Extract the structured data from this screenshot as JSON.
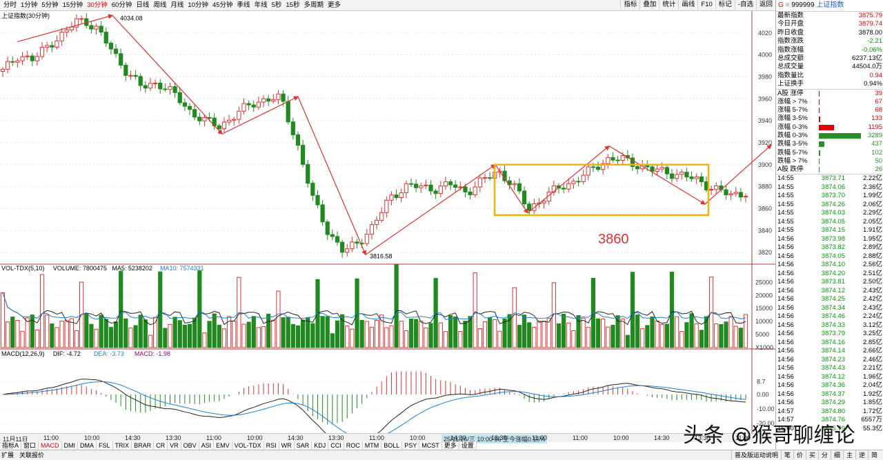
{
  "periods": [
    "分时",
    "1分钟",
    "5分钟",
    "15分钟",
    "30分钟",
    "60分钟",
    "日线",
    "周线",
    "月线",
    "10分钟",
    "45分钟",
    "季线",
    "年线",
    "5秒",
    "15秒",
    "多周期",
    "更多"
  ],
  "active_period": "30分钟",
  "tools": [
    "指标",
    "叠加",
    "统计",
    "画线",
    "F10",
    "标记",
    "-自选",
    "返回"
  ],
  "chart_title": "上证指数(30分钟)",
  "price_axis": [
    "4020",
    "4000",
    "3980",
    "3960",
    "3940",
    "3920",
    "3900",
    "3880",
    "3860",
    "3840",
    "3820"
  ],
  "high_label": "4034.08",
  "low_label": "3816.58",
  "annotation": "3860",
  "vol_header": {
    "name": "VOL-TDX(5,10)",
    "volume": "VOLUME: 7800475",
    "ma5": "MA5: 5238202",
    "ma10": "MA10: 7574331"
  },
  "vol_axis": [
    "25000",
    "20000",
    "15000",
    "10000",
    "5000",
    "X1000"
  ],
  "macd_header": {
    "name": "MACD(12,26,9)",
    "dif": "DIF: -4.72",
    "dea": "DEA: -3.73",
    "macd": "MACD: -1.98"
  },
  "macd_axis": [
    "8.7",
    "0.00",
    "-10.00",
    "-20.00"
  ],
  "time_axis": [
    "11月11日",
    "11:00",
    "10:00",
    "14:30",
    "13:30",
    "11:00",
    "10:00",
    "14:30",
    "13:30",
    "11:00",
    "10:00",
    "14:30",
    "13:30",
    "11:00",
    "11:00",
    "10:00",
    "14:30",
    "13:30",
    "11:00"
  ],
  "time_status": "25/11/26/三 10:00 56 至今涨幅0.15%",
  "indicators": [
    "指标A",
    "窗口",
    "MACD",
    "DMI",
    "DMA",
    "FSL",
    "TRIX",
    "BRAR",
    "CR",
    "VR",
    "OBV",
    "ASI",
    "EMV",
    "VOL-TDX",
    "RSI",
    "WR",
    "SAR",
    "KDJ",
    "CCI",
    "ROC",
    "MTM",
    "BOLL",
    "PSY",
    "MCST",
    "更多",
    "设置"
  ],
  "active_indicator": "MACD",
  "bottom_left": [
    "扩展",
    "关联报价"
  ],
  "bottom_right": [
    "普及版运动说明",
    "笔",
    "价",
    "买",
    "分",
    "细",
    "主",
    "逆",
    "简"
  ],
  "watermark": "头条 @猴哥聊缠论",
  "panel": {
    "code": "999999",
    "name": "上证指数",
    "stats": [
      {
        "k": "最新指数",
        "v": "3875.79",
        "c": "red"
      },
      {
        "k": "今日开盘",
        "v": "3879.74",
        "c": "red"
      },
      {
        "k": "昨日收盘",
        "v": "3878.00",
        "c": "blk"
      },
      {
        "k": "指数涨跌",
        "v": "-2.21",
        "c": "green"
      },
      {
        "k": "指数涨幅",
        "v": "-0.06%",
        "c": "green"
      },
      {
        "k": "总成交额",
        "v": "6237.13亿",
        "c": "blk"
      },
      {
        "k": "总成交量",
        "v": "44504.0万",
        "c": "blk"
      },
      {
        "k": "指数量比",
        "v": "0.94",
        "c": "red"
      },
      {
        "k": "上证换手",
        "v": "0.94%",
        "c": "blk"
      }
    ],
    "breadth": [
      {
        "k": "A股 涨停",
        "v": "39",
        "color": "#e00000",
        "share": 0.004
      },
      {
        "k": "涨幅 > 7%",
        "v": "67",
        "color": "#e00000",
        "share": 0.007
      },
      {
        "k": "涨幅 5-7%",
        "v": "68",
        "color": "#e00000",
        "share": 0.007
      },
      {
        "k": "涨幅 3-5%",
        "v": "133",
        "color": "#e00000",
        "share": 0.013
      },
      {
        "k": "涨幅 0-3%",
        "v": "1195",
        "color": "#e00000",
        "share": 0.12
      },
      {
        "k": "跌幅 0-3%",
        "v": "3289",
        "color": "#2a8f2a",
        "share": 0.34
      },
      {
        "k": "跌幅 3-5%",
        "v": "437",
        "color": "#2a8f2a",
        "share": 0.045
      },
      {
        "k": "跌幅 5-7%",
        "v": "102",
        "color": "#2a8f2a",
        "share": 0.01
      },
      {
        "k": "跌幅 > 7%",
        "v": "50",
        "color": "#2a8f2a",
        "share": 0.005
      },
      {
        "k": "A股 跌停",
        "v": "26",
        "color": "#2a8f2a",
        "share": 0.003
      }
    ],
    "ticks": [
      {
        "t": "14:55",
        "p": "3873.71",
        "q": "2.22亿"
      },
      {
        "t": "14:55",
        "p": "3874.06",
        "q": "2.36亿"
      },
      {
        "t": "14:55",
        "p": "3873.70",
        "q": "1.99亿"
      },
      {
        "t": "14:55",
        "p": "3874.26",
        "q": "2.06亿"
      },
      {
        "t": "14:55",
        "p": "3874.03",
        "q": "2.29亿"
      },
      {
        "t": "14:55",
        "p": "3874.05",
        "q": "2.05亿"
      },
      {
        "t": "14:55",
        "p": "3874.15",
        "q": "1.91亿"
      },
      {
        "t": "14:56",
        "p": "3873.98",
        "q": "1.95亿"
      },
      {
        "t": "14:56",
        "p": "3873.82",
        "q": "2.89亿"
      },
      {
        "t": "14:56",
        "p": "3874.05",
        "q": "2.88亿"
      },
      {
        "t": "14:56",
        "p": "3874.10",
        "q": "2.56亿"
      },
      {
        "t": "14:56",
        "p": "3874.20",
        "q": "2.51亿"
      },
      {
        "t": "14:56",
        "p": "3873.81",
        "q": "2.50亿"
      },
      {
        "t": "14:56",
        "p": "3874.12",
        "q": "2.43亿"
      },
      {
        "t": "14:56",
        "p": "3874.25",
        "q": "2.42亿"
      },
      {
        "t": "14:56",
        "p": "3874.34",
        "q": "2.43亿"
      },
      {
        "t": "14:56",
        "p": "3874.46",
        "q": "2.24亿"
      },
      {
        "t": "14:56",
        "p": "3874.33",
        "q": "3.12亿"
      },
      {
        "t": "14:56",
        "p": "3873.79",
        "q": "3.25亿"
      },
      {
        "t": "14:56",
        "p": "3874.16",
        "q": "2.85亿"
      },
      {
        "t": "14:56",
        "p": "3874.14",
        "q": "2.66亿"
      },
      {
        "t": "14:56",
        "p": "3874.23",
        "q": "2.46亿"
      },
      {
        "t": "14:56",
        "p": "3874.43",
        "q": "2.21亿"
      },
      {
        "t": "14:56",
        "p": "3874.12",
        "q": "1.96亿"
      },
      {
        "t": "14:56",
        "p": "3874.36",
        "q": "2.04亿"
      },
      {
        "t": "14:56",
        "p": "3874.37",
        "q": "1.92亿"
      },
      {
        "t": "14:56",
        "p": "3874.29",
        "q": "1.85亿"
      },
      {
        "t": "14:57",
        "p": "3874.80",
        "q": "1.72亿"
      },
      {
        "t": "14:57",
        "p": "3874.76",
        "q": "6557万"
      },
      {
        "t": "15:00",
        "p": "3875.79",
        "q": "55.3亿"
      }
    ]
  },
  "chart_data": {
    "type": "candlestick",
    "ylim": [
      3810,
      4040
    ],
    "high": 4034.08,
    "low": 3816.58,
    "path": [
      3985,
      4000,
      3995,
      4010,
      4020,
      4034,
      4025,
      4005,
      3985,
      3970,
      3975,
      3965,
      3950,
      3940,
      3935,
      3945,
      3955,
      3960,
      3960,
      3920,
      3870,
      3840,
      3820,
      3830,
      3845,
      3870,
      3880,
      3880,
      3878,
      3882,
      3875,
      3885,
      3895,
      3880,
      3860,
      3870,
      3880,
      3885,
      3895,
      3905,
      3905,
      3900,
      3895,
      3893,
      3890,
      3885,
      3878,
      3872,
      3875
    ]
  }
}
